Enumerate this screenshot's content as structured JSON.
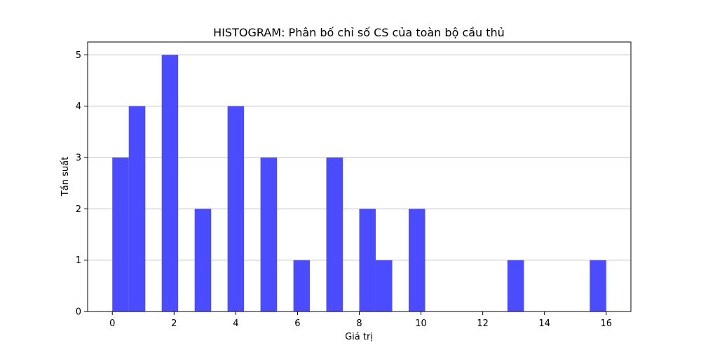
{
  "chart_data": {
    "type": "bar",
    "title": "HISTOGRAM: Phân bố chỉ số CS của toàn bộ cầu thủ",
    "xlabel": "Giá trị",
    "ylabel": "Tần suất",
    "xlim": [
      -0.8,
      16.8
    ],
    "ylim": [
      0,
      5.25
    ],
    "x_ticks": [
      0,
      2,
      4,
      6,
      8,
      10,
      12,
      14,
      16
    ],
    "y_ticks": [
      0,
      1,
      2,
      3,
      4,
      5
    ],
    "grid": "y",
    "bar_color": "#4b4bff",
    "bins": [
      {
        "start": 0.0,
        "end": 0.533,
        "value": 3
      },
      {
        "start": 0.533,
        "end": 1.067,
        "value": 4
      },
      {
        "start": 1.6,
        "end": 2.133,
        "value": 5
      },
      {
        "start": 2.667,
        "end": 3.2,
        "value": 2
      },
      {
        "start": 3.733,
        "end": 4.267,
        "value": 4
      },
      {
        "start": 4.8,
        "end": 5.333,
        "value": 3
      },
      {
        "start": 5.867,
        "end": 6.4,
        "value": 1
      },
      {
        "start": 6.933,
        "end": 7.467,
        "value": 3
      },
      {
        "start": 8.0,
        "end": 8.533,
        "value": 2
      },
      {
        "start": 8.533,
        "end": 9.067,
        "value": 1
      },
      {
        "start": 9.6,
        "end": 10.133,
        "value": 2
      },
      {
        "start": 12.8,
        "end": 13.333,
        "value": 1
      },
      {
        "start": 15.467,
        "end": 16.0,
        "value": 1
      }
    ]
  }
}
